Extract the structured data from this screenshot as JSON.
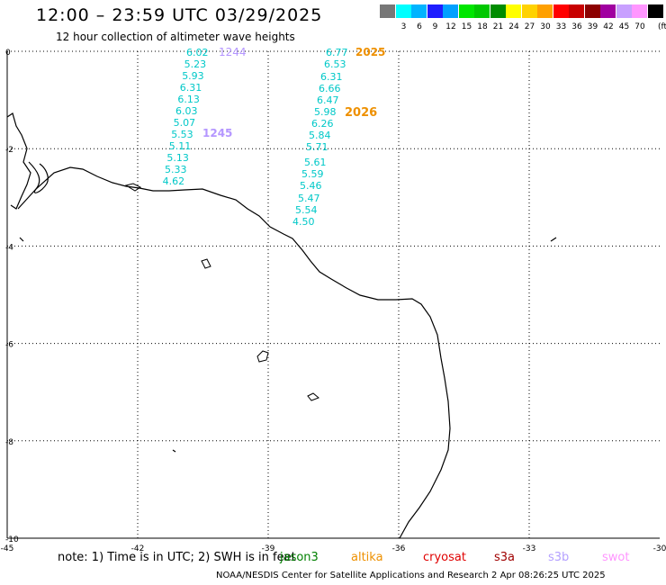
{
  "header": {
    "title": "12:00 – 23:59 UTC 03/29/2025",
    "subtitle": "12 hour collection of altimeter wave heights"
  },
  "colorbar": {
    "unit": "(ft)",
    "items": [
      {
        "label": "",
        "color": "#777777"
      },
      {
        "label": "3",
        "color": "#00ffff"
      },
      {
        "label": "6",
        "color": "#00b4ff"
      },
      {
        "label": "9",
        "color": "#1e1eff"
      },
      {
        "label": "12",
        "color": "#00a0ff"
      },
      {
        "label": "15",
        "color": "#00e600"
      },
      {
        "label": "18",
        "color": "#00c800"
      },
      {
        "label": "21",
        "color": "#008c00"
      },
      {
        "label": "24",
        "color": "#ffff00"
      },
      {
        "label": "27",
        "color": "#ffd200"
      },
      {
        "label": "30",
        "color": "#ffa000"
      },
      {
        "label": "33",
        "color": "#ff0000"
      },
      {
        "label": "36",
        "color": "#c80000"
      },
      {
        "label": "39",
        "color": "#8c0000"
      },
      {
        "label": "42",
        "color": "#a000a0"
      },
      {
        "label": "45",
        "color": "#c8a0ff"
      },
      {
        "label": "70",
        "color": "#ff96ff"
      },
      {
        "label": "",
        "color": "#000000"
      }
    ]
  },
  "map": {
    "lat_labels": [
      "0",
      "-2",
      "-4",
      "-6",
      "-8",
      "-10"
    ],
    "lon_labels": [
      "-45",
      "-42",
      "-39",
      "-36",
      "-33",
      "-30"
    ],
    "tracks": [
      {
        "color": "#00c8c8",
        "time_label": "1244",
        "time_label_color": "#b496ff",
        "values": [
          "6.02",
          "5.23",
          "5.93",
          "6.31",
          "6.13",
          "6.03",
          "5.07",
          "5.53",
          "5.11",
          "5.13",
          "5.33",
          "4.62"
        ]
      },
      {
        "color": "#00c8c8",
        "time_label": "1245",
        "time_label_color": "#b496ff",
        "values": []
      },
      {
        "color": "#00c8c8",
        "time_label": "2025",
        "time_label_color": "#ee9000",
        "values": [
          "6.77",
          "6.53",
          "6.31",
          "6.66",
          "6.47",
          "5.98",
          "6.26",
          "5.84",
          "5.71",
          "5.61",
          "5.59",
          "5.46",
          "5.47",
          "5.54",
          "4.50"
        ]
      },
      {
        "color": "#00c8c8",
        "time_label": "2026",
        "time_label_color": "#ee9000",
        "values": []
      }
    ]
  },
  "footer": {
    "note": "note:  1) Time is in UTC; 2) SWH is in feet",
    "satellites": [
      {
        "name": "jason3",
        "color": "#008000"
      },
      {
        "name": "altika",
        "color": "#ee9000"
      },
      {
        "name": "cryosat",
        "color": "#e00000"
      },
      {
        "name": "s3a",
        "color": "#a00000"
      },
      {
        "name": "s3b",
        "color": "#b4a0ff"
      },
      {
        "name": "swot",
        "color": "#ff96ff"
      }
    ],
    "credit": "NOAA/NESDIS Center for Satellite Applications and Research     2 Apr 08:26:25 UTC 2025"
  }
}
